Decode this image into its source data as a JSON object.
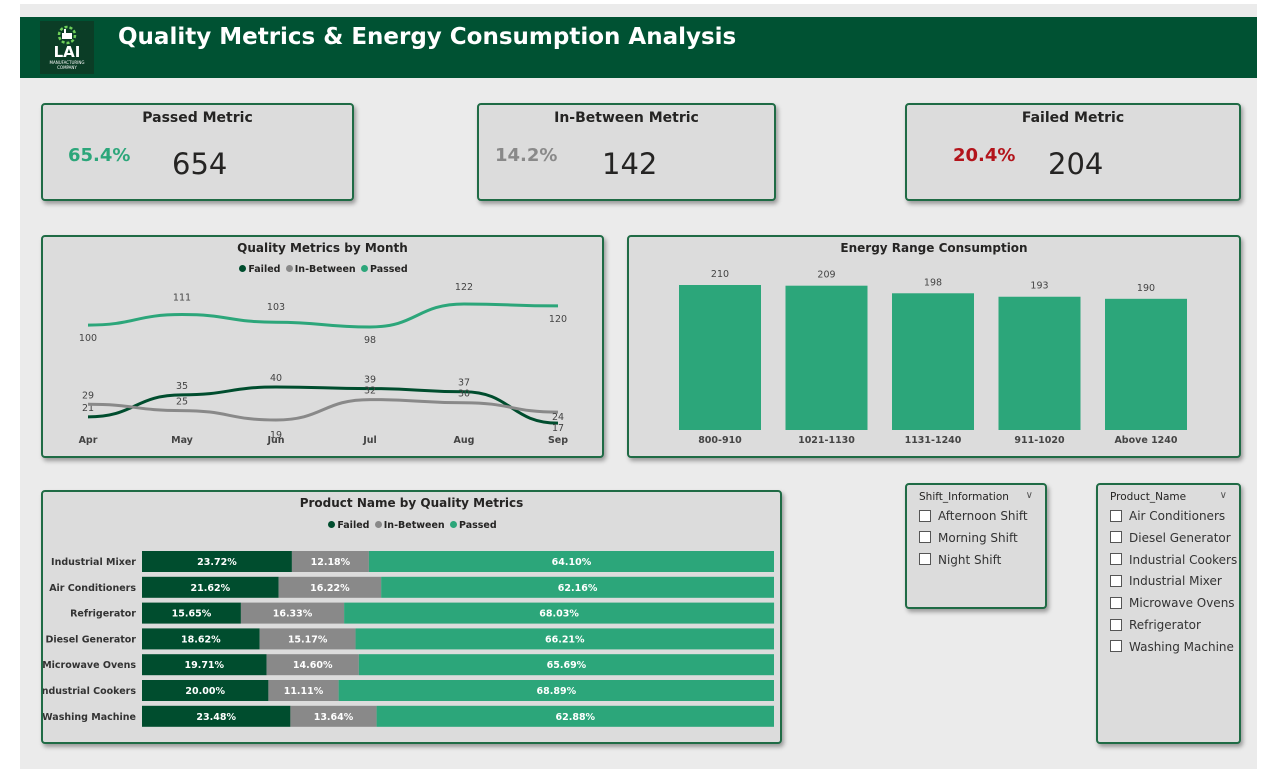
{
  "header": {
    "title": "Quality Metrics & Energy Consumption Analysis",
    "logo_text": "LAI",
    "logo_subtext": "MANUFACTURING COMPANY"
  },
  "kpis": {
    "passed": {
      "title": "Passed Metric",
      "pct": "65.4%",
      "value": "654"
    },
    "between": {
      "title": "In-Between Metric",
      "pct": "14.2%",
      "value": "142"
    },
    "failed": {
      "title": "Failed Metric",
      "pct": "20.4%",
      "value": "204"
    }
  },
  "colors": {
    "failed": "#004d2e",
    "in_between": "#898989",
    "passed": "#2ca67a",
    "header": "#005233",
    "failed_pct_text": "#b3141b"
  },
  "legend": {
    "failed": "Failed",
    "in_between": "In-Between",
    "passed": "Passed"
  },
  "chart_data": [
    {
      "type": "line",
      "title": "Quality Metrics by Month",
      "categories": [
        "Apr",
        "May",
        "Jun",
        "Jul",
        "Aug",
        "Sep"
      ],
      "series": [
        {
          "name": "Failed",
          "values": [
            21,
            35,
            40,
            39,
            37,
            17
          ]
        },
        {
          "name": "In-Between",
          "values": [
            29,
            25,
            19,
            32,
            30,
            24
          ]
        },
        {
          "name": "Passed",
          "values": [
            100,
            111,
            103,
            98,
            122,
            120
          ]
        }
      ],
      "legend": "top-center",
      "grid": false
    },
    {
      "type": "bar",
      "title": "Energy Range Consumption",
      "categories": [
        "800-910",
        "1021-1130",
        "1131-1240",
        "911-1020",
        "Above 1240"
      ],
      "values": [
        210,
        209,
        198,
        193,
        190
      ],
      "grid": false
    },
    {
      "type": "bar",
      "orientation": "horizontal",
      "stacked": "100%",
      "title": "Product Name by Quality Metrics",
      "categories": [
        "Industrial Mixer",
        "Air Conditioners",
        "Refrigerator",
        "Diesel Generator",
        "Microwave Ovens",
        "Industrial Cookers",
        "Washing Machine"
      ],
      "series": [
        {
          "name": "Failed",
          "values": [
            23.72,
            21.62,
            15.65,
            18.62,
            19.71,
            20.0,
            23.48
          ]
        },
        {
          "name": "In-Between",
          "values": [
            12.18,
            16.22,
            16.33,
            15.17,
            14.6,
            11.11,
            13.64
          ]
        },
        {
          "name": "Passed",
          "values": [
            64.1,
            62.16,
            68.03,
            66.21,
            65.69,
            68.89,
            62.88
          ]
        }
      ],
      "legend": "top-center"
    }
  ],
  "slicers": {
    "shift": {
      "title": "Shift_Information",
      "options": [
        "Afternoon Shift",
        "Morning Shift",
        "Night Shift"
      ]
    },
    "product": {
      "title": "Product_Name",
      "options": [
        "Air Conditioners",
        "Diesel Generator",
        "Industrial Cookers",
        "Industrial Mixer",
        "Microwave Ovens",
        "Refrigerator",
        "Washing Machine"
      ]
    }
  }
}
